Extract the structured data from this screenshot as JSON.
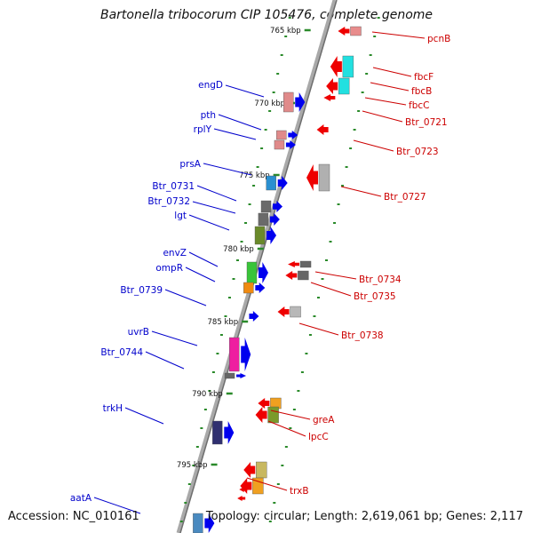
{
  "title": "Bartonella tribocorum CIP 105476, complete genome",
  "footer": {
    "accession": "Accession: NC_010161",
    "summary": "Topology: circular; Length: 2,619,061 bp; Genes: 2,117"
  },
  "colors": {
    "forward_label": "#0000cc",
    "reverse_label": "#cc0000",
    "forward_gene": "#0000ee",
    "reverse_gene": "#ee0000",
    "backbone": "#8c8c8c",
    "tick": "#2a8a2a"
  },
  "scale_ticks": [
    {
      "id": "kbp-765",
      "label": "765 kbp"
    },
    {
      "id": "kbp-770",
      "label": "770 kbp"
    },
    {
      "id": "kbp-775",
      "label": "775 kbp"
    },
    {
      "id": "kbp-780",
      "label": "780 kbp"
    },
    {
      "id": "kbp-785",
      "label": "785 kbp"
    },
    {
      "id": "kbp-790",
      "label": "790 kbp"
    },
    {
      "id": "kbp-795",
      "label": "795 kbp"
    }
  ],
  "forward_genes": [
    {
      "id": "engD",
      "label": "engD"
    },
    {
      "id": "pth",
      "label": "pth"
    },
    {
      "id": "rplY",
      "label": "rplY"
    },
    {
      "id": "prsA",
      "label": "prsA"
    },
    {
      "id": "Btr_0731",
      "label": "Btr_0731"
    },
    {
      "id": "Btr_0732",
      "label": "Btr_0732"
    },
    {
      "id": "lgt",
      "label": "lgt"
    },
    {
      "id": "envZ",
      "label": "envZ"
    },
    {
      "id": "ompR",
      "label": "ompR"
    },
    {
      "id": "Btr_0739",
      "label": "Btr_0739"
    },
    {
      "id": "uvrB",
      "label": "uvrB"
    },
    {
      "id": "Btr_0744",
      "label": "Btr_0744"
    },
    {
      "id": "trkH",
      "label": "trkH"
    },
    {
      "id": "aatA",
      "label": "aatA"
    }
  ],
  "reverse_genes": [
    {
      "id": "pcnB",
      "label": "pcnB"
    },
    {
      "id": "fbcF",
      "label": "fbcF"
    },
    {
      "id": "fbcB",
      "label": "fbcB"
    },
    {
      "id": "fbcC",
      "label": "fbcC"
    },
    {
      "id": "Btr_0721",
      "label": "Btr_0721"
    },
    {
      "id": "Btr_0723",
      "label": "Btr_0723"
    },
    {
      "id": "Btr_0727",
      "label": "Btr_0727"
    },
    {
      "id": "Btr_0734",
      "label": "Btr_0734"
    },
    {
      "id": "Btr_0735",
      "label": "Btr_0735"
    },
    {
      "id": "Btr_0738",
      "label": "Btr_0738"
    },
    {
      "id": "greA",
      "label": "greA"
    },
    {
      "id": "lpcC",
      "label": "lpcC"
    },
    {
      "id": "trxB",
      "label": "trxB"
    }
  ]
}
